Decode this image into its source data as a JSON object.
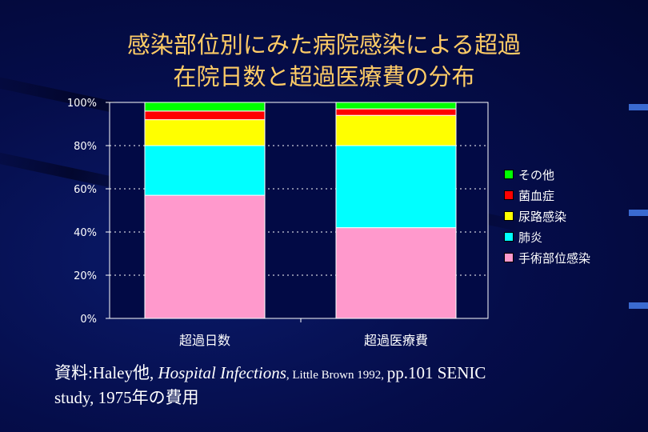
{
  "title_lines": [
    "感染部位別にみた病院感染による超過",
    "在院日数と超過医療費の分布"
  ],
  "chart_data": {
    "type": "bar",
    "stacked": true,
    "percent": true,
    "categories": [
      "超過日数",
      "超過医療費"
    ],
    "series": [
      {
        "name": "手術部位感染",
        "color": "#ff99cc",
        "values": [
          57,
          42
        ]
      },
      {
        "name": "肺炎",
        "color": "#00ffff",
        "values": [
          23,
          38
        ]
      },
      {
        "name": "尿路感染",
        "color": "#ffff00",
        "values": [
          12,
          14
        ]
      },
      {
        "name": "菌血症",
        "color": "#ff0000",
        "values": [
          4,
          3
        ]
      },
      {
        "name": "その他",
        "color": "#00ff00",
        "values": [
          4,
          3
        ]
      }
    ],
    "yticks": [
      "0%",
      "20%",
      "40%",
      "60%",
      "80%",
      "100%"
    ],
    "ylim": [
      0,
      100
    ],
    "grid": "dotted horizontal",
    "legend": "right"
  },
  "source": {
    "prefix": "資料:Haley他, ",
    "italic": "Hospital Infections",
    "small": ", Little Brown 1992, ",
    "rest": "  pp.101  SENIC",
    "line2": "study, 1975年の費用"
  }
}
